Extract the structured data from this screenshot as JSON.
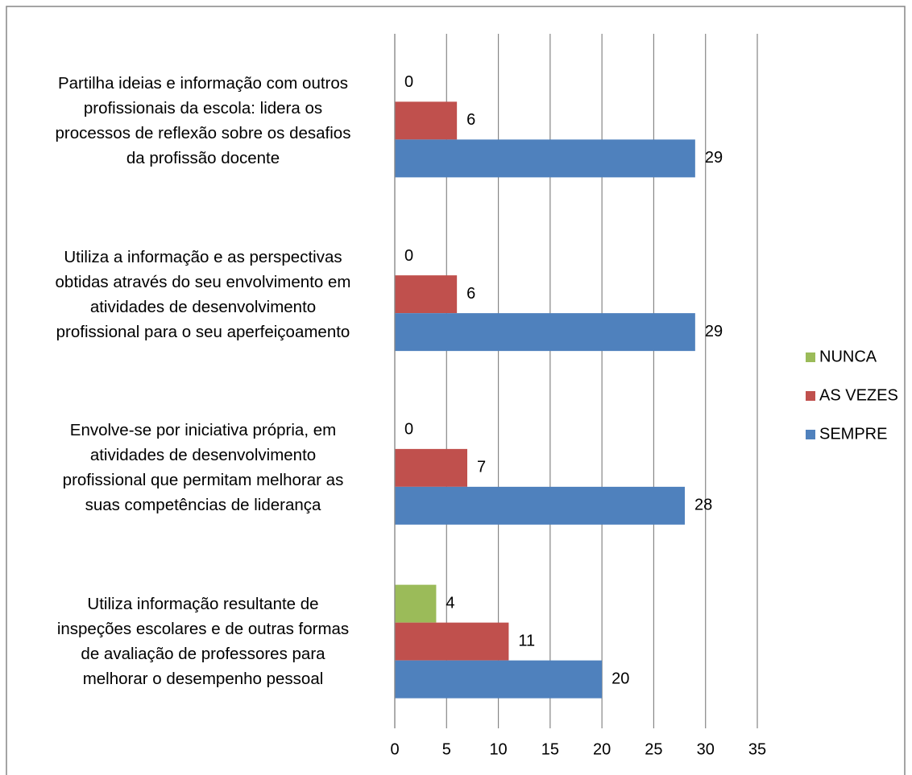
{
  "chart_data": {
    "type": "hbar",
    "categories": [
      "Partilha ideias e informação com outros\nprofissionais da escola: lidera os\nprocessos de reflexão sobre os desafios\nda profissão docente",
      "Utiliza a informação e as perspectivas\nobtidas através do seu envolvimento em\natividades de desenvolvimento\nprofissional para o seu aperfeiçoamento",
      "Envolve-se por iniciativa própria, em\natividades de desenvolvimento\nprofissional que permitam melhorar as\nsuas competências de liderança",
      "Utiliza informação resultante de\ninspeções escolares e de outras formas\nde avaliação de professores para\nmelhorar o desempenho pessoal"
    ],
    "series": [
      {
        "name": "NUNCA",
        "color": "#9bbb59",
        "values": [
          0,
          0,
          0,
          4
        ]
      },
      {
        "name": "AS VEZES",
        "color": "#c0504d",
        "values": [
          6,
          6,
          7,
          11
        ]
      },
      {
        "name": "SEMPRE",
        "color": "#4f81bd",
        "values": [
          29,
          29,
          28,
          20
        ]
      }
    ],
    "xlim": [
      0,
      35
    ],
    "xticks": [
      0,
      5,
      10,
      15,
      20,
      25,
      30,
      35
    ],
    "grid": true,
    "legend": "right"
  }
}
